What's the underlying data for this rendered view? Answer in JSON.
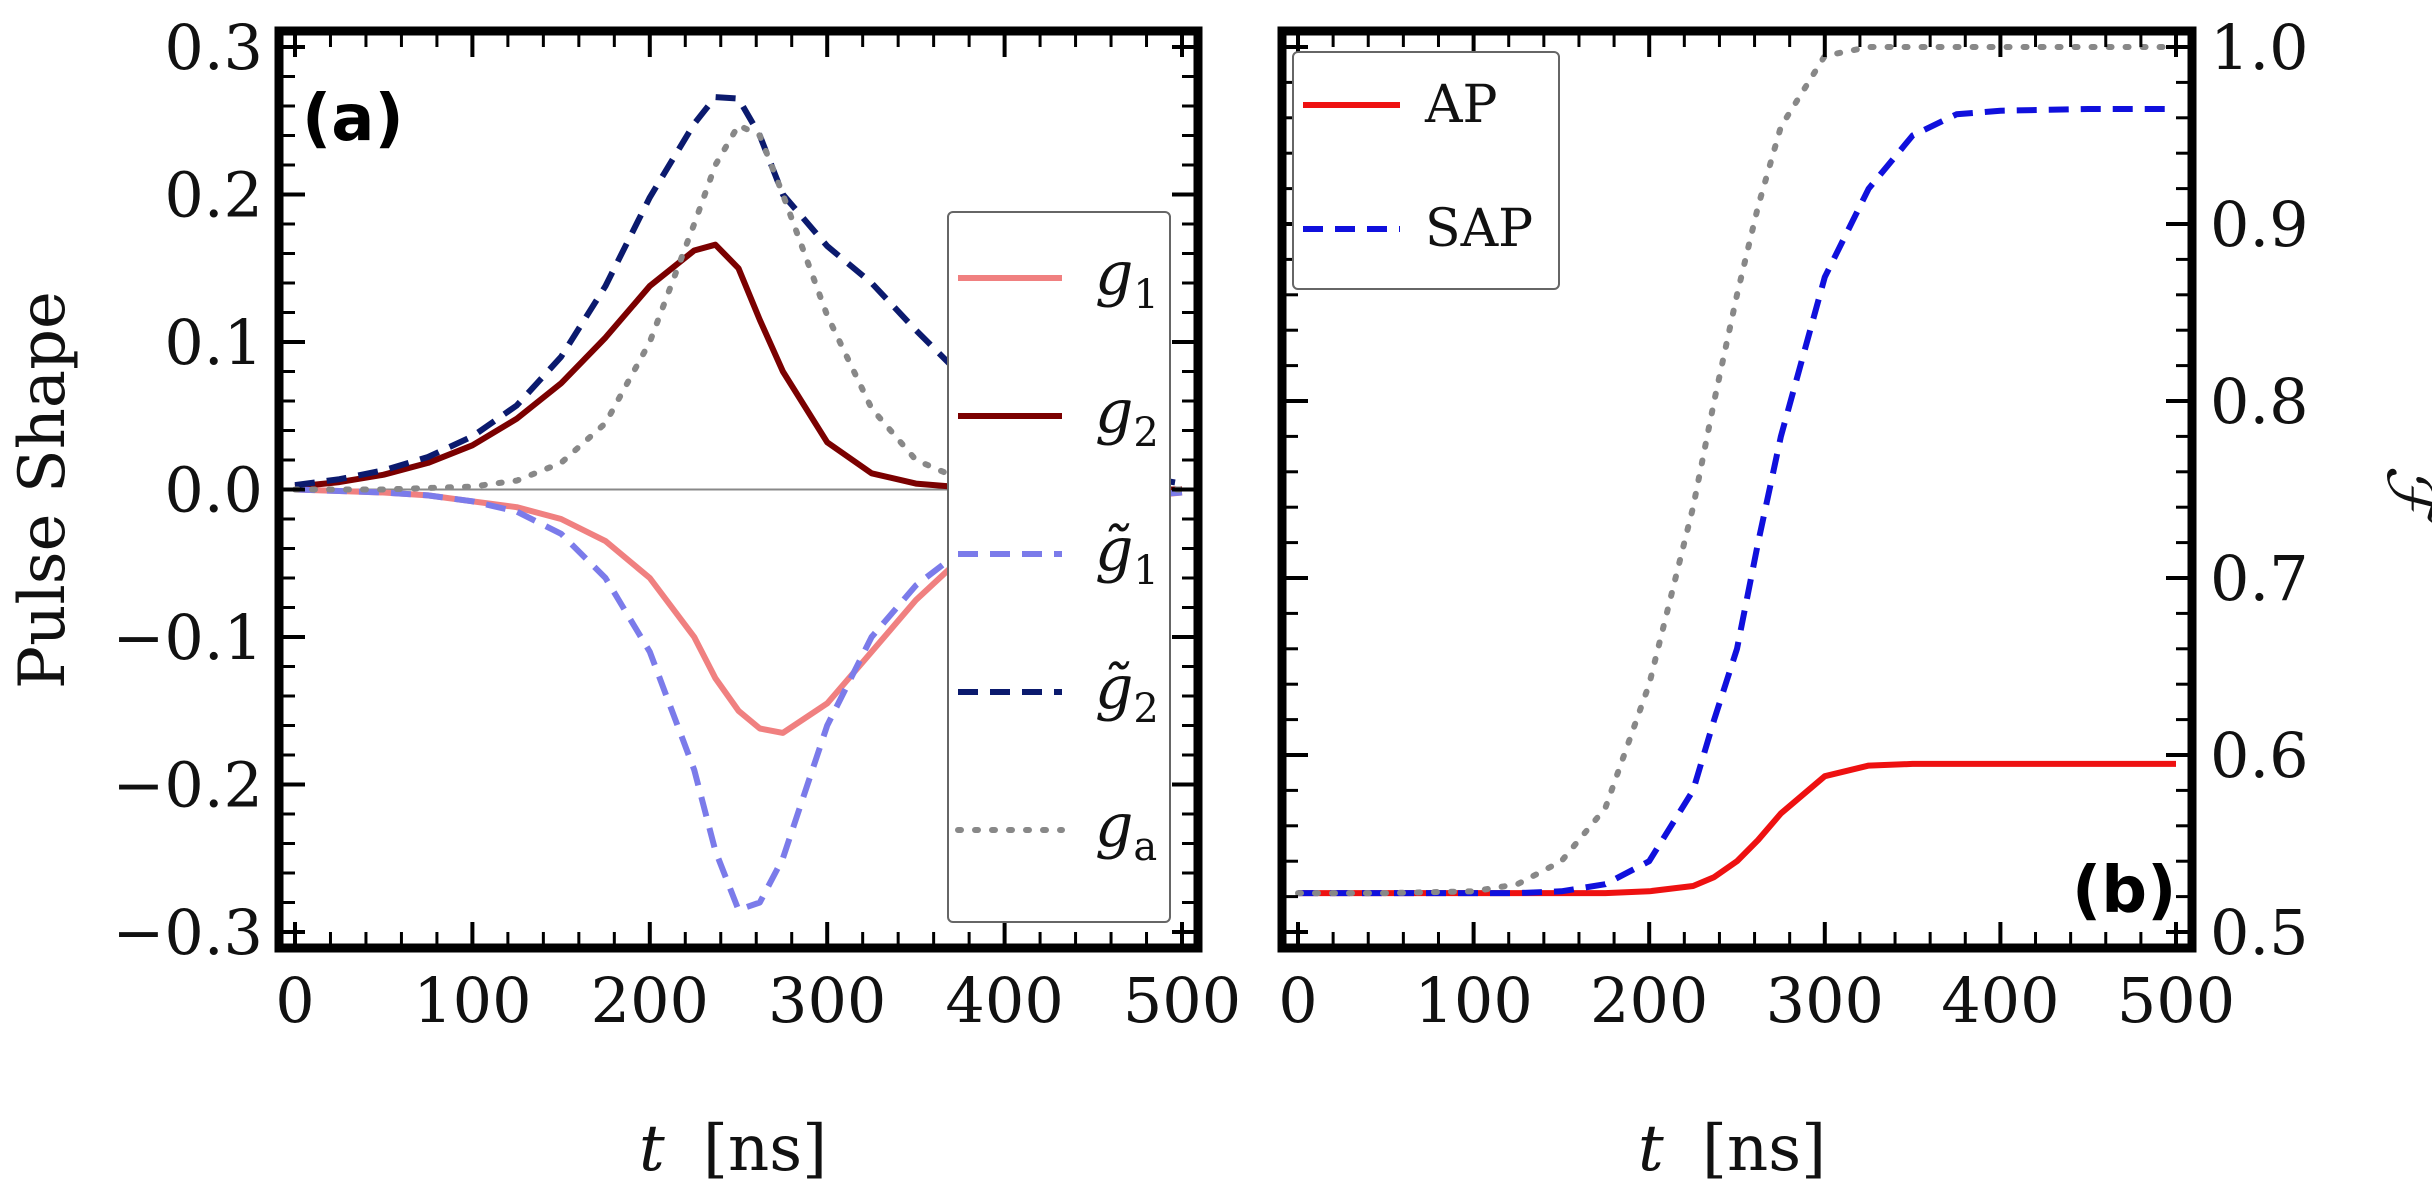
{
  "chart_data": [
    {
      "type": "line",
      "panel": "(a)",
      "xlabel_var": "t",
      "xlabel_unit": "[ns]",
      "ylabel": "Pulse Shape",
      "xlim": [
        0,
        500
      ],
      "ylim": [
        -0.3,
        0.3
      ],
      "xticks": [
        0,
        100,
        200,
        300,
        400,
        500
      ],
      "yticks": [
        -0.3,
        -0.2,
        -0.1,
        0.0,
        0.1,
        0.2,
        0.3
      ],
      "ytick_labels": [
        "−0.3",
        "−0.2",
        "−0.1",
        "0.0",
        "0.1",
        "0.2",
        "0.3"
      ],
      "legend_position": "right",
      "x": [
        0,
        25,
        50,
        75,
        100,
        125,
        150,
        175,
        200,
        225,
        237,
        250,
        262,
        275,
        300,
        325,
        350,
        375,
        400,
        425,
        450,
        475,
        500
      ],
      "series": [
        {
          "name": "g",
          "sub": "1",
          "tilde": false,
          "color": "#f08080",
          "dash": "solid",
          "width": 6,
          "values": [
            0.0,
            -0.001,
            -0.002,
            -0.004,
            -0.008,
            -0.012,
            -0.02,
            -0.035,
            -0.06,
            -0.1,
            -0.128,
            -0.15,
            -0.162,
            -0.165,
            -0.145,
            -0.11,
            -0.075,
            -0.047,
            -0.028,
            -0.016,
            -0.009,
            -0.005,
            -0.002
          ]
        },
        {
          "name": "g",
          "sub": "2",
          "tilde": false,
          "color": "#7b0000",
          "dash": "solid",
          "width": 6,
          "values": [
            0.002,
            0.005,
            0.01,
            0.018,
            0.03,
            0.048,
            0.072,
            0.103,
            0.138,
            0.162,
            0.166,
            0.15,
            0.115,
            0.08,
            0.032,
            0.011,
            0.004,
            0.0015,
            0.0005,
            0.0002,
            0.0001,
            0.0,
            0.0
          ]
        },
        {
          "name": "g",
          "sub": "1",
          "tilde": true,
          "color": "#7b7bea",
          "dash": "dash",
          "width": 6,
          "values": [
            0.0,
            -0.001,
            -0.002,
            -0.004,
            -0.008,
            -0.015,
            -0.03,
            -0.06,
            -0.11,
            -0.19,
            -0.245,
            -0.285,
            -0.28,
            -0.25,
            -0.16,
            -0.1,
            -0.065,
            -0.042,
            -0.026,
            -0.015,
            -0.008,
            -0.004,
            -0.002
          ]
        },
        {
          "name": "g",
          "sub": "2",
          "tilde": true,
          "color": "#0b1a6e",
          "dash": "dash",
          "width": 6,
          "values": [
            0.003,
            0.007,
            0.013,
            0.022,
            0.036,
            0.057,
            0.09,
            0.138,
            0.198,
            0.248,
            0.266,
            0.265,
            0.24,
            0.2,
            0.165,
            0.14,
            0.108,
            0.078,
            0.05,
            0.03,
            0.017,
            0.009,
            0.004
          ]
        },
        {
          "name": "g",
          "sub": "a",
          "tilde": false,
          "color": "#888888",
          "dash": "dot",
          "width": 6,
          "values": [
            0.0,
            0.0,
            0.0,
            0.001,
            0.002,
            0.006,
            0.018,
            0.045,
            0.1,
            0.18,
            0.22,
            0.247,
            0.24,
            0.2,
            0.118,
            0.055,
            0.02,
            0.007,
            0.002,
            0.001,
            0.0,
            0.0,
            0.0
          ]
        }
      ]
    },
    {
      "type": "line",
      "panel": "(b)",
      "xlabel_var": "t",
      "xlabel_unit": "[ns]",
      "ylabel": "ℱ",
      "ylabel_side": "right",
      "xlim": [
        0,
        500
      ],
      "ylim": [
        0.5,
        1.0
      ],
      "xticks": [
        0,
        100,
        200,
        300,
        400,
        500
      ],
      "yticks": [
        0.5,
        0.6,
        0.7,
        0.8,
        0.9,
        1.0
      ],
      "ytick_labels": [
        "0.5",
        "0.6",
        "0.7",
        "0.8",
        "0.9",
        "1.0"
      ],
      "legend_position": "top-left",
      "x": [
        0,
        50,
        100,
        125,
        150,
        175,
        200,
        225,
        237,
        250,
        262,
        275,
        300,
        325,
        350,
        375,
        400,
        450,
        500
      ],
      "series": [
        {
          "name": "AP",
          "color": "#ee1111",
          "dash": "solid",
          "width": 6,
          "values": [
            0.522,
            0.522,
            0.522,
            0.522,
            0.522,
            0.522,
            0.523,
            0.526,
            0.531,
            0.54,
            0.552,
            0.567,
            0.588,
            0.594,
            0.595,
            0.595,
            0.595,
            0.595,
            0.595
          ]
        },
        {
          "name": "SAP",
          "color": "#1010dd",
          "dash": "dash",
          "width": 6,
          "values": [
            0.522,
            0.522,
            0.522,
            0.522,
            0.523,
            0.527,
            0.54,
            0.58,
            0.62,
            0.66,
            0.72,
            0.78,
            0.87,
            0.92,
            0.95,
            0.962,
            0.964,
            0.965,
            0.965
          ]
        },
        {
          "name": "",
          "color": "#888888",
          "dash": "dot",
          "width": 6,
          "values": [
            0.522,
            0.522,
            0.523,
            0.527,
            0.54,
            0.57,
            0.64,
            0.74,
            0.8,
            0.86,
            0.91,
            0.955,
            0.995,
            1.0,
            1.0,
            1.0,
            1.0,
            1.0,
            1.0
          ]
        }
      ]
    }
  ]
}
